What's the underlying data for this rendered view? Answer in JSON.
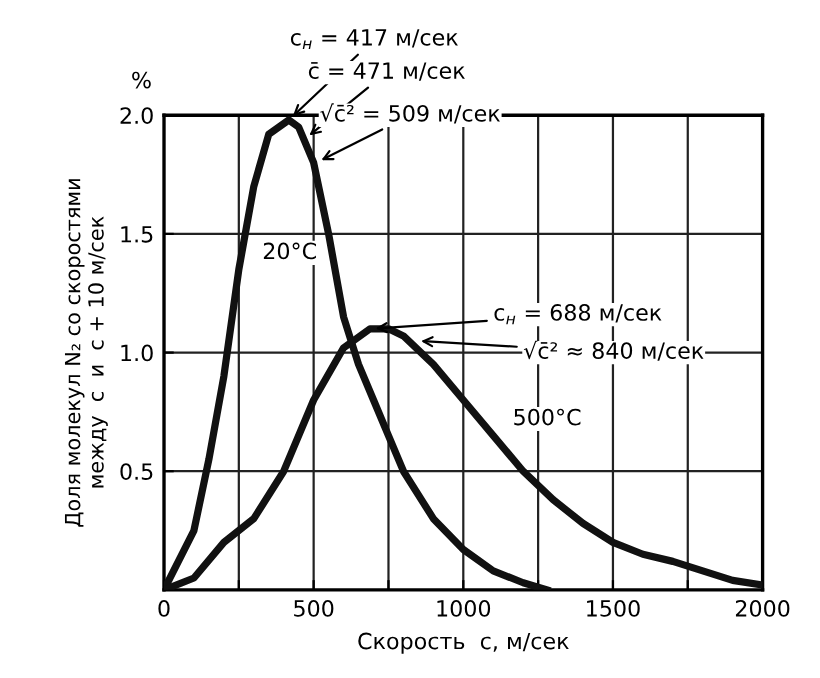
{
  "chart_data": {
    "type": "line",
    "xlabel": "Скорость  c, м/сек",
    "ylabel": "Доля молекул N₂ со скоростями\nмежду  c  и  c + 10 м/сек",
    "series": [
      {
        "name": "20°C",
        "color": "#111111",
        "x": [
          0,
          100,
          150,
          200,
          250,
          300,
          350,
          417,
          450,
          500,
          550,
          600,
          650,
          700,
          750,
          800,
          900,
          1000,
          1100,
          1200,
          1280
        ],
        "values": [
          0,
          0.25,
          0.55,
          0.9,
          1.35,
          1.7,
          1.92,
          1.98,
          1.95,
          1.8,
          1.5,
          1.15,
          0.95,
          0.8,
          0.65,
          0.5,
          0.3,
          0.17,
          0.08,
          0.03,
          0
        ]
      },
      {
        "name": "500°C",
        "color": "#111111",
        "x": [
          0,
          100,
          200,
          300,
          400,
          500,
          600,
          688,
          750,
          800,
          900,
          1000,
          1100,
          1200,
          1300,
          1400,
          1500,
          1600,
          1700,
          1800,
          1900,
          2000
        ],
        "values": [
          0,
          0.05,
          0.2,
          0.3,
          0.5,
          0.8,
          1.02,
          1.1,
          1.1,
          1.07,
          0.95,
          0.8,
          0.65,
          0.5,
          0.38,
          0.28,
          0.2,
          0.15,
          0.12,
          0.08,
          0.04,
          0.02
        ]
      }
    ],
    "xlim": [
      0,
      2000
    ],
    "ylim": [
      0,
      2.0
    ],
    "xticks": [
      0,
      {
        "value": 250,
        "label": null
      },
      500,
      {
        "value": 750,
        "label": null
      },
      1000,
      {
        "value": 1250,
        "label": null
      },
      1500,
      {
        "value": 1750,
        "label": null
      },
      2000
    ],
    "yticks": [
      0.5,
      {
        "value": 1.0,
        "label": "1.0"
      },
      1.5,
      {
        "value": 2.0,
        "label": "2.0"
      }
    ],
    "grid": true,
    "marker": "none",
    "line_style": "solid",
    "annotations": [
      {
        "text": "c$_{н}$ = 417 м/сек",
        "x": 417,
        "y": 1.98
      },
      {
        "text": "c̄ = 471 м/сек",
        "x": 471,
        "y": 1.9
      },
      {
        "text": "√c̄² = 509 м/сек",
        "x": 509,
        "y": 1.8
      },
      {
        "text": "c$_{н}$ = 688 м/сек",
        "x": 688,
        "y": 1.1
      },
      {
        "text": "√c̄² ≈ 840 м/сек",
        "x": 840,
        "y": 1.05
      },
      "%"
    ]
  }
}
